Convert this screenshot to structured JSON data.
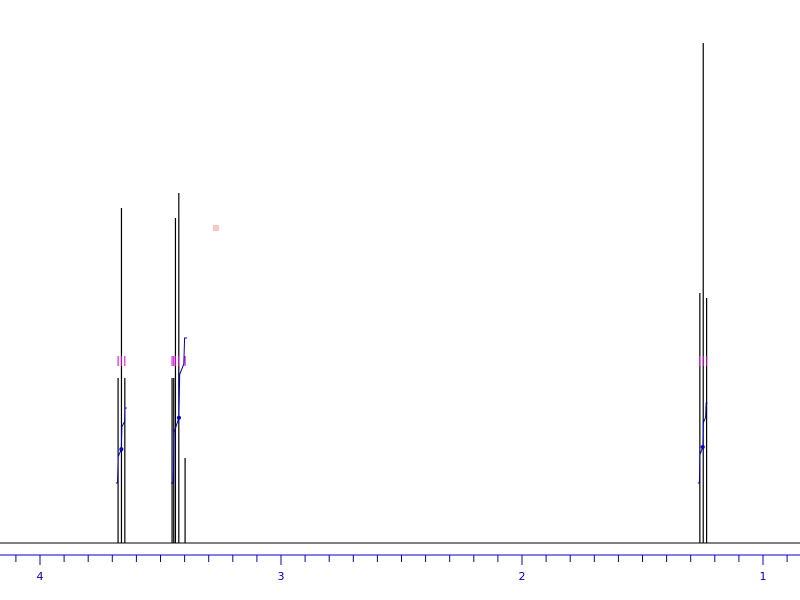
{
  "chart_data": {
    "type": "line",
    "title": "",
    "xlabel": "",
    "ylabel": "",
    "x_unit": "ppm",
    "x_reversed": true,
    "xlim": [
      4.1,
      0.85
    ],
    "ylim": [
      0,
      1.0
    ],
    "grid": false,
    "legend": "none",
    "tick_labels": [
      "4",
      "3",
      "2",
      "1"
    ],
    "major_ticks": [
      4,
      3,
      2,
      1
    ],
    "minor_tick_step": 0.1,
    "colors": {
      "spectrum": "#000000",
      "axis": "#0000cc",
      "integral": "#0000cc",
      "peak_marker": "#cc00cc",
      "baseline": "#000000",
      "artifact": "#f8c8c8"
    },
    "series": [
      {
        "values": [
          {
            "x": 3.676,
            "y": 0.33
          },
          {
            "x": 3.662,
            "y": 0.67
          },
          {
            "x": 3.648,
            "y": 0.33
          },
          {
            "x": 3.452,
            "y": 0.33
          },
          {
            "x": 3.445,
            "y": 0.33
          },
          {
            "x": 3.438,
            "y": 0.65
          },
          {
            "x": 3.424,
            "y": 0.7
          },
          {
            "x": 3.398,
            "y": 0.17
          },
          {
            "x": 1.262,
            "y": 0.5
          },
          {
            "x": 1.248,
            "y": 1.0
          },
          {
            "x": 1.234,
            "y": 0.49
          }
        ]
      }
    ],
    "integrals": [
      {
        "x_start": 3.685,
        "x_end": 3.64,
        "y_bottom": 0.12,
        "y_top": 0.27
      },
      {
        "x_start": 3.457,
        "x_end": 3.39,
        "y_bottom": 0.12,
        "y_top": 0.41
      },
      {
        "x_start": 1.27,
        "x_end": 1.23,
        "y_bottom": 0.12,
        "y_top": 0.28
      }
    ],
    "peak_markers": [
      {
        "x": 3.676
      },
      {
        "x": 3.662
      },
      {
        "x": 3.648
      },
      {
        "x": 3.452
      },
      {
        "x": 3.445
      },
      {
        "x": 3.438
      },
      {
        "x": 3.424
      },
      {
        "x": 3.398
      },
      {
        "x": 1.262
      },
      {
        "x": 1.248
      },
      {
        "x": 1.234
      }
    ],
    "artifact": {
      "x": 3.27,
      "y": 0.63
    }
  }
}
